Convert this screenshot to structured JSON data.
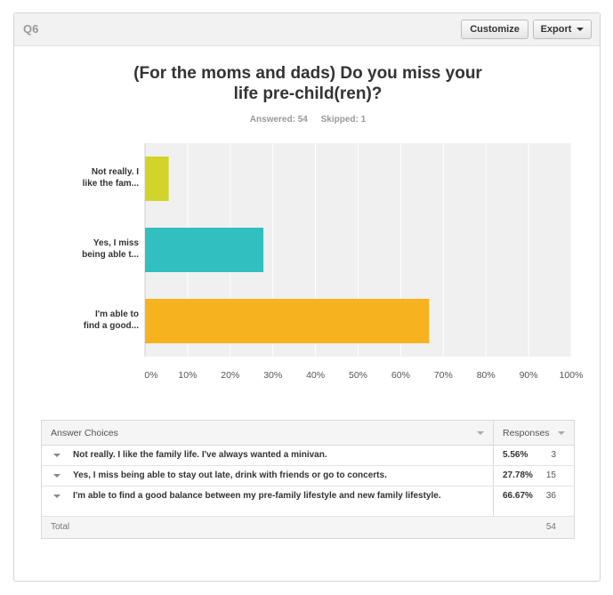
{
  "header": {
    "question_label": "Q6",
    "customize_label": "Customize",
    "export_label": "Export"
  },
  "title_line1": "(For the moms and dads) Do you miss your",
  "title_line2": "life pre-child(ren)?",
  "stats": {
    "answered": "Answered: 54",
    "skipped": "Skipped: 1"
  },
  "colors": {
    "bar1": "#d3d42a",
    "bar2": "#31bfbf",
    "bar3": "#f7b21f",
    "plot_bg": "#f0f0f0"
  },
  "chart_data": {
    "type": "bar",
    "orientation": "horizontal",
    "categories": [
      [
        "Not really. I",
        "like the fam..."
      ],
      [
        "Yes, I miss",
        "being able t..."
      ],
      [
        "I'm able to",
        "find a good..."
      ]
    ],
    "values": [
      5.56,
      27.78,
      66.67
    ],
    "xlim": [
      0,
      100
    ],
    "x_ticks": [
      "0%",
      "10%",
      "20%",
      "30%",
      "40%",
      "50%",
      "60%",
      "70%",
      "80%",
      "90%",
      "100%"
    ],
    "grid": true
  },
  "table": {
    "col_choices": "Answer Choices",
    "col_responses": "Responses",
    "rows": [
      {
        "text": "Not really. I like the family life. I've always wanted a minivan.",
        "pct": "5.56%",
        "count": "3"
      },
      {
        "text": "Yes, I miss being able to stay out late, drink with friends or go to concerts.",
        "pct": "27.78%",
        "count": "15"
      },
      {
        "text": "I'm able to find a good balance between my pre-family lifestyle and new family lifestyle.",
        "pct": "66.67%",
        "count": "36"
      }
    ],
    "total_label": "Total",
    "total_value": "54"
  }
}
